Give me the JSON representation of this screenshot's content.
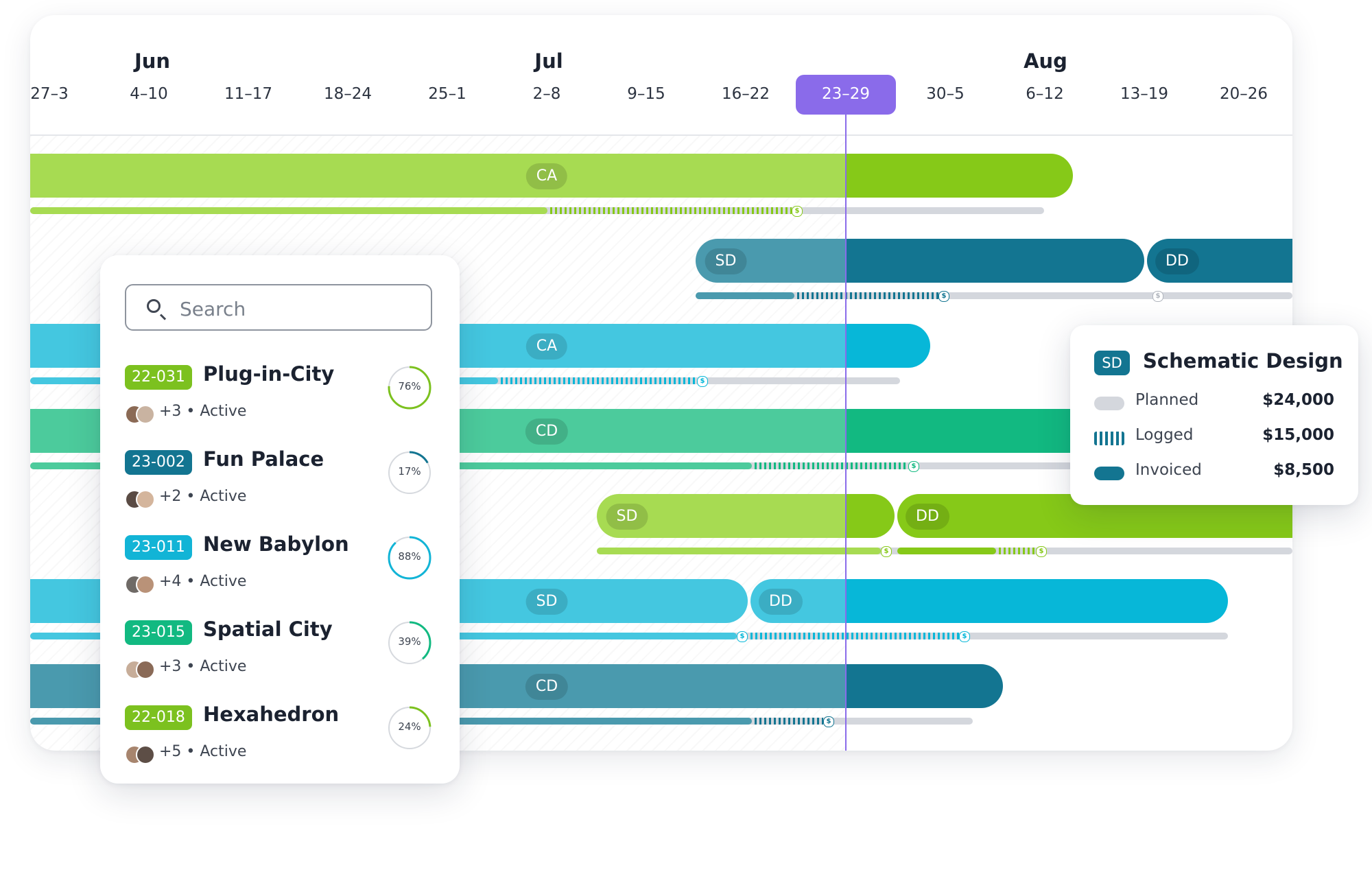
{
  "timeline": {
    "months": [
      {
        "label": "Jun",
        "week_index": 1
      },
      {
        "label": "Jul",
        "week_index": 5
      },
      {
        "label": "Aug",
        "week_index": 10
      }
    ],
    "weeks": [
      "27–3",
      "4–10",
      "11–17",
      "18–24",
      "25–1",
      "2–8",
      "9–15",
      "16–22",
      "23–29",
      "30–5",
      "6–12",
      "13–19",
      "20–26"
    ],
    "current_week": "23–29",
    "rows": [
      {
        "phases": [
          {
            "label": "CA"
          }
        ]
      },
      {
        "phases": [
          {
            "label": "SD"
          },
          {
            "label": "DD"
          }
        ]
      },
      {
        "phases": [
          {
            "label": "CA"
          }
        ]
      },
      {
        "phases": [
          {
            "label": "CD"
          }
        ]
      },
      {
        "phases": [
          {
            "label": "SD"
          },
          {
            "label": "DD"
          }
        ]
      },
      {
        "phases": [
          {
            "label": "SD"
          },
          {
            "label": "DD"
          }
        ]
      },
      {
        "phases": [
          {
            "label": "CD"
          }
        ]
      }
    ]
  },
  "search": {
    "placeholder": "Search",
    "icon": "search-icon",
    "projects": [
      {
        "code": "22-031",
        "name": "Plug-in-City",
        "meta": "+3 • Active",
        "progress_label": "76%",
        "progress": 0.76,
        "code_color": "#7cc11f",
        "ring_color": "#7cc11f"
      },
      {
        "code": "23-002",
        "name": "Fun Palace",
        "meta": "+2 • Active",
        "progress_label": "17%",
        "progress": 0.17,
        "code_color": "#137591",
        "ring_color": "#137591"
      },
      {
        "code": "23-011",
        "name": "New Babylon",
        "meta": "+4 • Active",
        "progress_label": "88%",
        "progress": 0.88,
        "code_color": "#12b4d6",
        "ring_color": "#12b4d6"
      },
      {
        "code": "23-015",
        "name": "Spatial City",
        "meta": "+3 • Active",
        "progress_label": "39%",
        "progress": 0.39,
        "code_color": "#12b981",
        "ring_color": "#12b981"
      },
      {
        "code": "22-018",
        "name": "Hexahedron",
        "meta": "+5 • Active",
        "progress_label": "24%",
        "progress": 0.24,
        "code_color": "#7cc11f",
        "ring_color": "#7cc11f"
      }
    ]
  },
  "tooltip": {
    "badge": "SD",
    "title": "Schematic Design",
    "rows": [
      {
        "label": "Planned",
        "value": "$24,000"
      },
      {
        "label": "Logged",
        "value": "$15,000"
      },
      {
        "label": "Invoiced",
        "value": "$8,500"
      }
    ]
  },
  "colors": {
    "accent": "#8a6bea",
    "lime": "#86c918",
    "lime_light": "#a7db52",
    "teal_dark": "#137591",
    "teal_light": "#4a9aae",
    "cyan": "#07b7d8",
    "cyan_light": "#44c7e0",
    "green": "#12b981",
    "green_light": "#4ccb9c",
    "track": "#d4d7dd"
  }
}
